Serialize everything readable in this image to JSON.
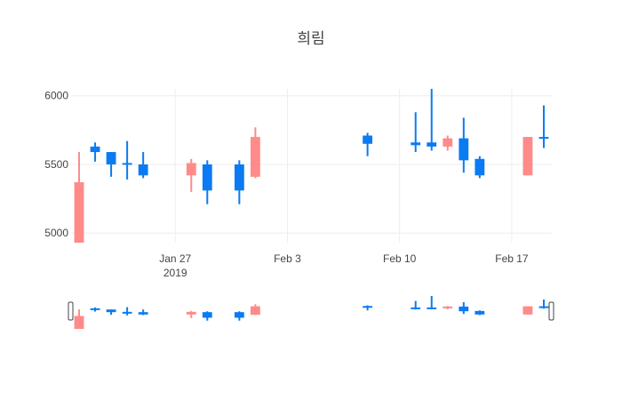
{
  "chart_data": {
    "type": "candlestick",
    "title": "희림",
    "xlabel": "",
    "ylabel": "",
    "ylim": [
      4930,
      6050
    ],
    "xlim": [
      "2019-01-21",
      "2019-02-20"
    ],
    "grid": true,
    "legend": false,
    "colors": {
      "increasing": "#ff8a8a",
      "decreasing": "#0a7bf2"
    },
    "x_ticks": [
      {
        "date": "2019-01-27",
        "label": "Jan 27",
        "sublabel": "2019"
      },
      {
        "date": "2019-02-03",
        "label": "Feb 3",
        "sublabel": ""
      },
      {
        "date": "2019-02-10",
        "label": "Feb 10",
        "sublabel": ""
      },
      {
        "date": "2019-02-17",
        "label": "Feb 17",
        "sublabel": ""
      }
    ],
    "y_ticks": [
      5000,
      5500,
      6000
    ],
    "candles": [
      {
        "date": "2019-01-21",
        "open": 4930,
        "high": 5590,
        "low": 4930,
        "close": 5370
      },
      {
        "date": "2019-01-22",
        "open": 5630,
        "high": 5660,
        "low": 5520,
        "close": 5590
      },
      {
        "date": "2019-01-23",
        "open": 5590,
        "high": 5590,
        "low": 5410,
        "close": 5500
      },
      {
        "date": "2019-01-24",
        "open": 5510,
        "high": 5670,
        "low": 5390,
        "close": 5500
      },
      {
        "date": "2019-01-25",
        "open": 5500,
        "high": 5590,
        "low": 5400,
        "close": 5420
      },
      {
        "date": "2019-01-28",
        "open": 5420,
        "high": 5540,
        "low": 5300,
        "close": 5510
      },
      {
        "date": "2019-01-29",
        "open": 5500,
        "high": 5530,
        "low": 5210,
        "close": 5310
      },
      {
        "date": "2019-01-31",
        "open": 5500,
        "high": 5530,
        "low": 5210,
        "close": 5310
      },
      {
        "date": "2019-02-01",
        "open": 5410,
        "high": 5770,
        "low": 5400,
        "close": 5700
      },
      {
        "date": "2019-02-08",
        "open": 5710,
        "high": 5730,
        "low": 5560,
        "close": 5650
      },
      {
        "date": "2019-02-11",
        "open": 5660,
        "high": 5880,
        "low": 5590,
        "close": 5640
      },
      {
        "date": "2019-02-12",
        "open": 5660,
        "high": 6050,
        "low": 5600,
        "close": 5630
      },
      {
        "date": "2019-02-13",
        "open": 5630,
        "high": 5710,
        "low": 5600,
        "close": 5690
      },
      {
        "date": "2019-02-14",
        "open": 5690,
        "high": 5840,
        "low": 5440,
        "close": 5530
      },
      {
        "date": "2019-02-15",
        "open": 5540,
        "high": 5560,
        "low": 5400,
        "close": 5420
      },
      {
        "date": "2019-02-18",
        "open": 5420,
        "high": 5700,
        "low": 5420,
        "close": 5700
      },
      {
        "date": "2019-02-19",
        "open": 5700,
        "high": 5930,
        "low": 5620,
        "close": 5690
      }
    ],
    "rangeslider": true
  }
}
